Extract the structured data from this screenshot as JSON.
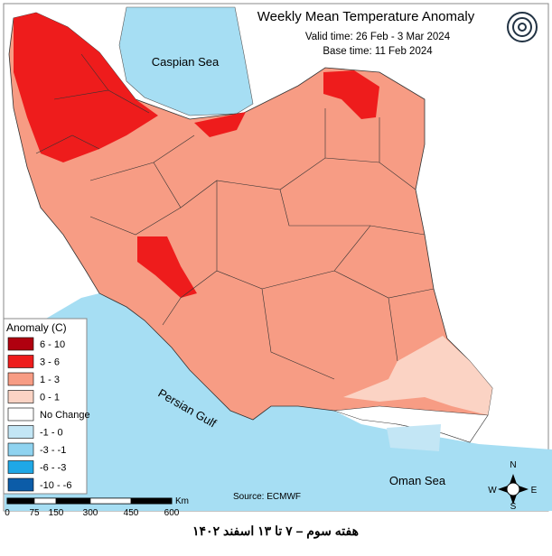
{
  "header": {
    "title": "Weekly Mean Temperature Anomaly",
    "valid_time": "Valid time: 26 Feb - 3 Mar 2024",
    "base_time": "Base time: 11 Feb 2024"
  },
  "map_labels": {
    "caspian": "Caspian Sea",
    "gulf": "Persian Gulf",
    "oman": "Oman Sea"
  },
  "legend": {
    "title": "Anomaly (C)",
    "items": [
      {
        "label": "6 - 10",
        "color": "#b0000f"
      },
      {
        "label": "3 - 6",
        "color": "#ee1c1c"
      },
      {
        "label": "1 - 3",
        "color": "#f79c84"
      },
      {
        "label": "0 - 1",
        "color": "#fbd3c4"
      },
      {
        "label": "No Change",
        "color": "#ffffff"
      },
      {
        "label": "-1 - 0",
        "color": "#c3e6f5"
      },
      {
        "label": "-3 - -1",
        "color": "#8fd3f0"
      },
      {
        "label": "-6 - -3",
        "color": "#1fa8e6"
      },
      {
        "label": "-10 - -6",
        "color": "#0c5ca8"
      }
    ]
  },
  "scale_bar": {
    "labels": [
      "0",
      "75",
      "150",
      "300",
      "450",
      "600"
    ],
    "unit": "Km"
  },
  "source": "Source: ECMWF",
  "compass": {
    "n": "N",
    "s": "S",
    "e": "E",
    "w": "W"
  },
  "caption": "هفته سوم – ۷ تا ۱۳ اسفند ۱۴۰۲"
}
